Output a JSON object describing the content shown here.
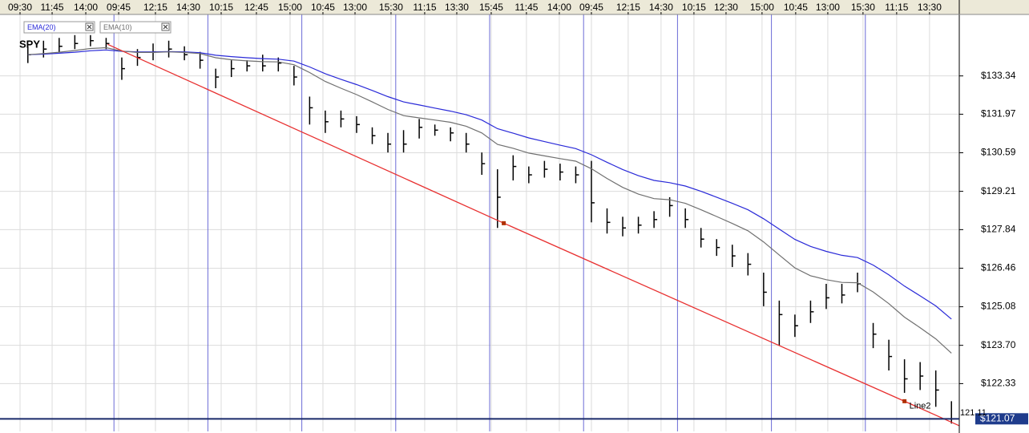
{
  "chart_data": {
    "type": "ohlc",
    "title": "SPY",
    "xlim": [
      0,
      60
    ],
    "ylim": [
      120.62,
      135.54
    ],
    "xticks": [
      {
        "value": 0,
        "label": "09:30"
      },
      {
        "value": 2.05,
        "label": "11:45"
      },
      {
        "value": 4.2,
        "label": "14:00"
      },
      {
        "value": 6.3,
        "label": "09:45"
      },
      {
        "value": 8.65,
        "label": "12:15"
      },
      {
        "value": 10.75,
        "label": "14:30"
      },
      {
        "value": 12.85,
        "label": "10:15"
      },
      {
        "value": 15.1,
        "label": "12:45"
      },
      {
        "value": 17.25,
        "label": "15:00"
      },
      {
        "value": 19.35,
        "label": "10:45"
      },
      {
        "value": 21.4,
        "label": "13:00"
      },
      {
        "value": 23.7,
        "label": "15:30"
      },
      {
        "value": 25.85,
        "label": "11:15"
      },
      {
        "value": 27.9,
        "label": "13:30"
      },
      {
        "value": 30.1,
        "label": "15:45"
      },
      {
        "value": 32.35,
        "label": "11:45"
      },
      {
        "value": 34.45,
        "label": "14:00"
      },
      {
        "value": 36.5,
        "label": "09:45"
      },
      {
        "value": 38.85,
        "label": "12:15"
      },
      {
        "value": 40.95,
        "label": "14:30"
      },
      {
        "value": 43.05,
        "label": "10:15"
      },
      {
        "value": 45.1,
        "label": "12:30"
      },
      {
        "value": 47.4,
        "label": "15:00"
      },
      {
        "value": 49.55,
        "label": "10:45"
      },
      {
        "value": 51.6,
        "label": "13:00"
      },
      {
        "value": 53.85,
        "label": "15:30"
      },
      {
        "value": 56.0,
        "label": "11:15"
      },
      {
        "value": 58.1,
        "label": "13:30"
      }
    ],
    "day_starts": [
      6,
      12,
      18,
      24,
      30,
      36,
      42,
      48,
      54
    ],
    "yticks": [
      {
        "value": 133.34,
        "label": "$133.34"
      },
      {
        "value": 131.97,
        "label": "$131.97"
      },
      {
        "value": 130.59,
        "label": "$130.59"
      },
      {
        "value": 129.21,
        "label": "$129.21"
      },
      {
        "value": 127.84,
        "label": "$127.84"
      },
      {
        "value": 126.46,
        "label": "$126.46"
      },
      {
        "value": 125.08,
        "label": "$125.08"
      },
      {
        "value": 123.7,
        "label": "$123.70"
      },
      {
        "value": 122.33,
        "label": "$122.33"
      }
    ],
    "grid": true,
    "bar_color": "#000000",
    "bars": {
      "high": [
        134.4,
        134.6,
        134.7,
        134.8,
        134.8,
        134.7,
        134.0,
        134.3,
        134.5,
        134.6,
        134.4,
        134.2,
        133.6,
        133.9,
        133.9,
        134.1,
        134.0,
        133.7,
        132.6,
        132.1,
        132.1,
        131.9,
        131.5,
        131.3,
        131.4,
        131.8,
        131.6,
        131.5,
        131.3,
        130.6,
        130.0,
        130.5,
        130.1,
        130.3,
        130.2,
        130.1,
        130.3,
        128.6,
        128.3,
        128.3,
        128.5,
        129.0,
        128.6,
        127.9,
        127.5,
        127.3,
        127.0,
        126.3,
        125.3,
        124.8,
        125.3,
        125.9,
        125.9,
        126.3,
        124.5,
        123.9,
        123.2,
        123.1,
        122.8,
        121.7
      ],
      "low": [
        133.8,
        134.0,
        134.2,
        134.3,
        134.4,
        134.3,
        133.2,
        133.7,
        133.9,
        134.0,
        133.9,
        133.6,
        132.9,
        133.3,
        133.5,
        133.5,
        133.5,
        133.0,
        131.6,
        131.3,
        131.5,
        131.3,
        130.9,
        130.6,
        130.6,
        131.1,
        131.2,
        131.0,
        130.6,
        129.8,
        127.9,
        129.6,
        129.5,
        129.7,
        129.6,
        129.5,
        128.1,
        127.7,
        127.6,
        127.7,
        127.9,
        128.3,
        127.9,
        127.2,
        126.9,
        126.5,
        126.2,
        125.1,
        123.7,
        124.0,
        124.5,
        125.0,
        125.2,
        125.6,
        123.6,
        122.8,
        122.0,
        122.1,
        121.5,
        120.9
      ],
      "close": [
        134.1,
        134.3,
        134.4,
        134.5,
        134.6,
        134.5,
        133.6,
        134.0,
        134.2,
        134.3,
        134.1,
        133.9,
        133.3,
        133.6,
        133.7,
        133.7,
        133.8,
        133.3,
        132.2,
        131.7,
        131.8,
        131.6,
        131.2,
        130.9,
        130.9,
        131.5,
        131.4,
        131.3,
        130.9,
        130.2,
        129.0,
        130.1,
        129.8,
        130.0,
        129.9,
        129.8,
        128.8,
        128.1,
        127.9,
        128.0,
        128.2,
        128.7,
        128.2,
        127.5,
        127.2,
        126.9,
        126.6,
        125.6,
        124.8,
        124.4,
        124.9,
        125.4,
        125.5,
        125.9,
        124.1,
        123.3,
        122.5,
        122.6,
        122.1,
        121.07
      ]
    },
    "series": [
      {
        "name": "EMA(20)",
        "color": "#2a2ad8",
        "values": [
          134.1,
          134.12,
          134.15,
          134.19,
          134.24,
          134.27,
          134.22,
          134.2,
          134.2,
          134.21,
          134.2,
          134.17,
          134.08,
          134.03,
          133.99,
          133.96,
          133.94,
          133.87,
          133.66,
          133.42,
          133.22,
          133.03,
          132.82,
          132.6,
          132.41,
          132.3,
          132.19,
          132.08,
          131.95,
          131.76,
          131.45,
          131.29,
          131.12,
          130.99,
          130.86,
          130.74,
          130.52,
          130.25,
          129.99,
          129.77,
          129.6,
          129.52,
          129.4,
          129.21,
          129.0,
          128.78,
          128.55,
          128.23,
          127.86,
          127.49,
          127.24,
          127.06,
          126.92,
          126.84,
          126.57,
          126.22,
          125.82,
          125.47,
          125.11,
          124.64
        ]
      },
      {
        "name": "EMA(10)",
        "color": "#707070",
        "values": [
          134.1,
          134.14,
          134.19,
          134.25,
          134.32,
          134.35,
          134.23,
          134.18,
          134.18,
          134.2,
          134.18,
          134.14,
          133.99,
          133.92,
          133.88,
          133.85,
          133.84,
          133.74,
          133.46,
          133.14,
          132.9,
          132.67,
          132.41,
          132.14,
          131.92,
          131.84,
          131.76,
          131.68,
          131.54,
          131.3,
          130.89,
          130.75,
          130.58,
          130.48,
          130.38,
          130.29,
          130.02,
          129.67,
          129.35,
          129.11,
          128.95,
          128.91,
          128.78,
          128.55,
          128.31,
          128.06,
          127.8,
          127.4,
          126.93,
          126.47,
          126.19,
          126.05,
          125.95,
          125.94,
          125.61,
          125.19,
          124.71,
          124.33,
          123.93,
          123.42
        ]
      }
    ],
    "trendline": {
      "name": "Line2",
      "color": "#e83030",
      "x": [
        5.6,
        30.9,
        56.5
      ],
      "y": [
        134.47,
        128.07,
        121.7
      ]
    },
    "last_price": {
      "value": 121.07,
      "label": "$121.07"
    },
    "last_trade": 121.11
  }
}
